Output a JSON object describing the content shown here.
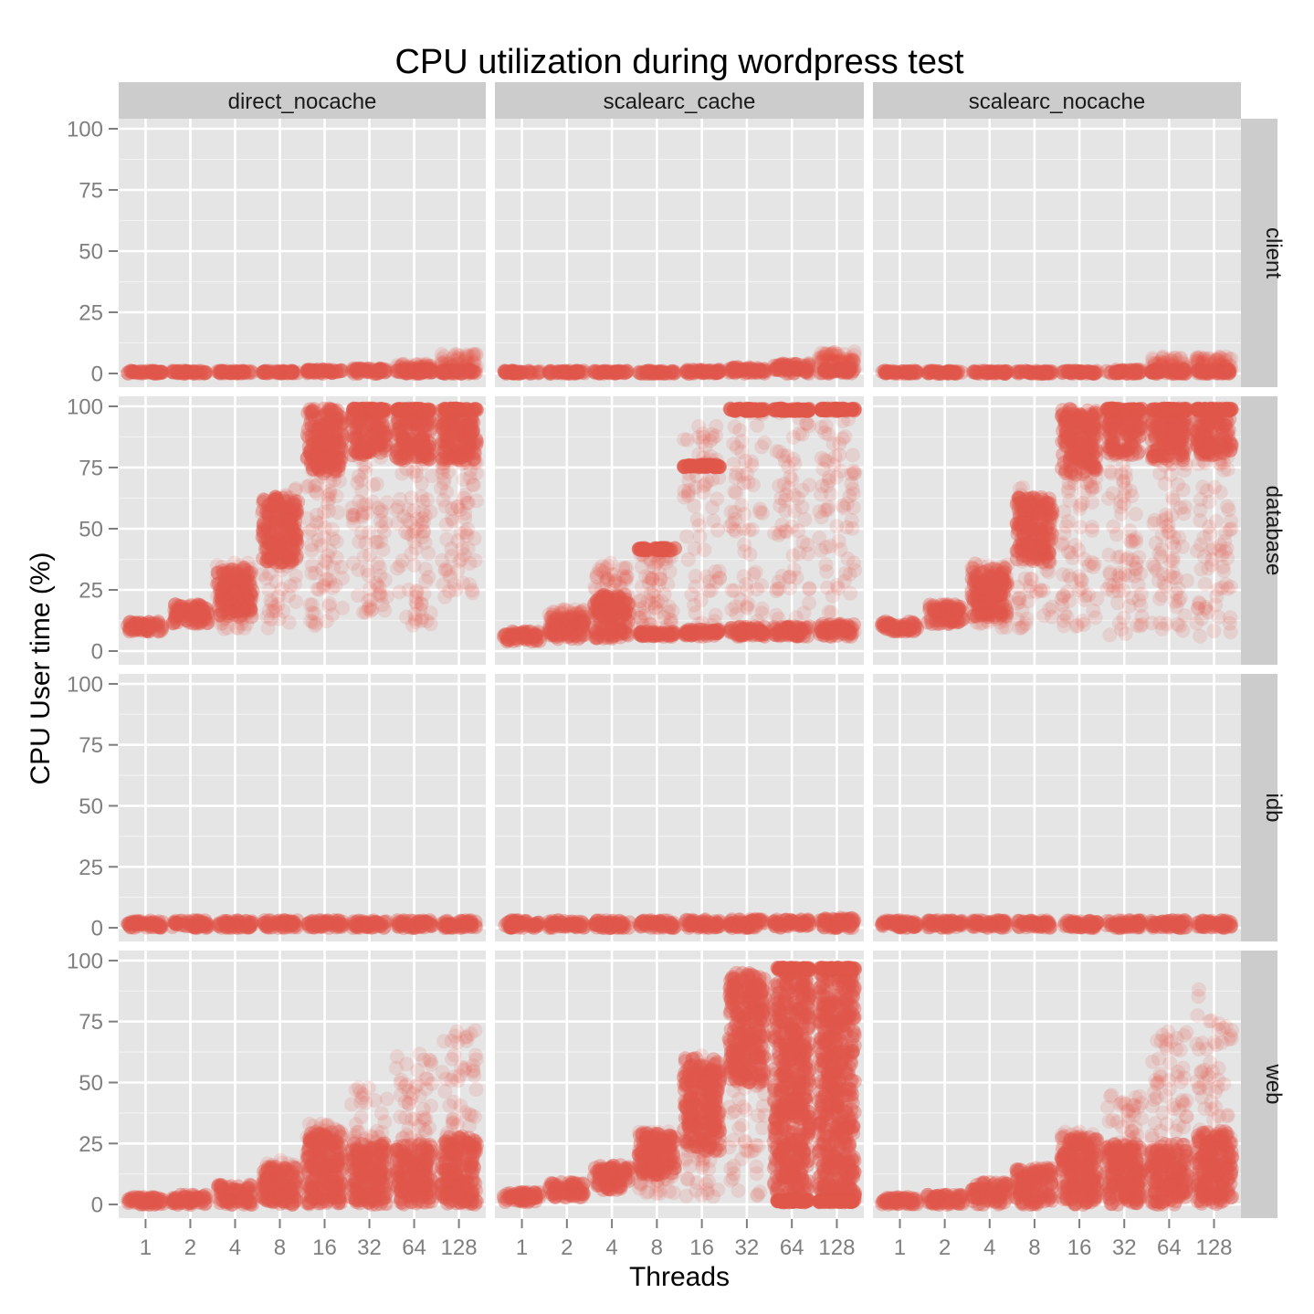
{
  "chart_data": {
    "type": "scatter",
    "subtype": "faceted jittered strip plot",
    "title": "CPU utilization during wordpress test",
    "xlabel": "Threads",
    "ylabel": "CPU User time (%)",
    "categories": [
      "1",
      "2",
      "4",
      "8",
      "16",
      "32",
      "64",
      "128"
    ],
    "ylim": [
      -5.6,
      104.1
    ],
    "yticks": [
      0,
      25,
      50,
      75,
      100
    ],
    "ytick_labels": [
      "0",
      "25",
      "50",
      "75",
      "100"
    ],
    "grid": true,
    "point_color": "#E0574A",
    "facet_cols": [
      "direct_nocache",
      "scalearc_cache",
      "scalearc_nocache"
    ],
    "facet_rows": [
      "client",
      "database",
      "idb",
      "web"
    ],
    "note": "each group: dense core range [lo,hi] of values, optional sparse range and cap level",
    "panels": {
      "client": {
        "direct_nocache": [
          {
            "core": [
              0,
              1
            ]
          },
          {
            "core": [
              0,
              1
            ]
          },
          {
            "core": [
              0,
              1
            ]
          },
          {
            "core": [
              0,
              1
            ]
          },
          {
            "core": [
              0,
              1.5
            ]
          },
          {
            "core": [
              0,
              2
            ]
          },
          {
            "core": [
              0,
              2
            ],
            "sparse": [
              0,
              4
            ]
          },
          {
            "core": [
              0,
              1.5
            ],
            "sparse": [
              0,
              8
            ]
          }
        ],
        "scalearc_cache": [
          {
            "core": [
              0,
              1
            ]
          },
          {
            "core": [
              0,
              1
            ]
          },
          {
            "core": [
              0,
              1
            ]
          },
          {
            "core": [
              0,
              1
            ]
          },
          {
            "core": [
              0,
              1.5
            ]
          },
          {
            "core": [
              0,
              2.5
            ]
          },
          {
            "core": [
              0,
              4
            ]
          },
          {
            "core": [
              0,
              2
            ],
            "sparse": [
              4,
              9
            ]
          }
        ],
        "scalearc_nocache": [
          {
            "core": [
              0,
              1
            ]
          },
          {
            "core": [
              0,
              1
            ]
          },
          {
            "core": [
              0,
              1
            ]
          },
          {
            "core": [
              0,
              1
            ]
          },
          {
            "core": [
              0,
              1
            ]
          },
          {
            "core": [
              0,
              1.5
            ]
          },
          {
            "core": [
              0,
              1.5
            ],
            "sparse": [
              0,
              7
            ]
          },
          {
            "core": [
              0,
              1.5
            ],
            "sparse": [
              0,
              7
            ]
          }
        ]
      },
      "database": {
        "direct_nocache": [
          {
            "core": [
              8,
              12
            ]
          },
          {
            "core": [
              11,
              19
            ]
          },
          {
            "core": [
              14,
              34
            ],
            "sparse": [
              9,
              36
            ]
          },
          {
            "core": [
              36,
              63
            ],
            "sparse": [
              9,
              67
            ]
          },
          {
            "core": [
              72,
              99
            ],
            "sparse": [
              10,
              75
            ]
          },
          {
            "core": [
              80,
              98
            ],
            "cap": 99,
            "sparse": [
              13,
              80
            ]
          },
          {
            "core": [
              78,
              98
            ],
            "cap": 99,
            "sparse": [
              9,
              80
            ]
          },
          {
            "core": [
              78,
              96
            ],
            "cap": 99,
            "sparse": [
              18,
              80
            ]
          }
        ],
        "scalearc_cache": [
          {
            "core": [
              4,
              8
            ]
          },
          {
            "core": [
              5,
              14
            ],
            "sparse": [
              10,
              17
            ]
          },
          {
            "core": [
              5,
              23
            ],
            "sparse": [
              15,
              36
            ]
          },
          {
            "core": [
              6,
              8
            ],
            "cap": 42,
            "sparse": [
              6,
              42
            ]
          },
          {
            "core": [
              6,
              9
            ],
            "cap": 76,
            "sparse": [
              6,
              92
            ]
          },
          {
            "core": [
              6,
              10
            ],
            "cap": 99,
            "sparse": [
              6,
              99
            ]
          },
          {
            "core": [
              6,
              10
            ],
            "cap": 99,
            "sparse": [
              6,
              99
            ]
          },
          {
            "core": [
              6,
              11
            ],
            "cap": 99,
            "sparse": [
              6,
              99
            ]
          }
        ],
        "scalearc_nocache": [
          {
            "core": [
              8,
              12
            ]
          },
          {
            "core": [
              11,
              19
            ]
          },
          {
            "core": [
              14,
              34
            ],
            "sparse": [
              9,
              36
            ]
          },
          {
            "core": [
              36,
              63
            ],
            "sparse": [
              9,
              67
            ]
          },
          {
            "core": [
              72,
              99
            ],
            "sparse": [
              10,
              75
            ]
          },
          {
            "core": [
              80,
              98
            ],
            "cap": 99,
            "sparse": [
              4,
              80
            ]
          },
          {
            "core": [
              78,
              98
            ],
            "cap": 99,
            "sparse": [
              8,
              80
            ]
          },
          {
            "core": [
              80,
              96
            ],
            "cap": 99,
            "sparse": [
              6,
              80
            ]
          }
        ]
      },
      "idb": {
        "direct_nocache": [
          {
            "core": [
              0,
              3
            ]
          },
          {
            "core": [
              0,
              3
            ]
          },
          {
            "core": [
              0,
              3
            ]
          },
          {
            "core": [
              0,
              3
            ]
          },
          {
            "core": [
              0,
              3
            ]
          },
          {
            "core": [
              0,
              3
            ]
          },
          {
            "core": [
              0,
              3
            ]
          },
          {
            "core": [
              0,
              3
            ]
          }
        ],
        "scalearc_cache": [
          {
            "core": [
              0,
              3
            ]
          },
          {
            "core": [
              0,
              3
            ]
          },
          {
            "core": [
              0,
              3
            ]
          },
          {
            "core": [
              0,
              3
            ]
          },
          {
            "core": [
              0,
              3.5
            ]
          },
          {
            "core": [
              0,
              3.5
            ]
          },
          {
            "core": [
              0,
              3.5
            ]
          },
          {
            "core": [
              0,
              4
            ]
          }
        ],
        "scalearc_nocache": [
          {
            "core": [
              0,
              3
            ]
          },
          {
            "core": [
              0,
              3
            ]
          },
          {
            "core": [
              0,
              3
            ]
          },
          {
            "core": [
              0,
              3
            ]
          },
          {
            "core": [
              0,
              3
            ]
          },
          {
            "core": [
              0,
              3
            ]
          },
          {
            "core": [
              0,
              3
            ]
          },
          {
            "core": [
              0,
              3
            ]
          }
        ]
      },
      "web": {
        "direct_nocache": [
          {
            "core": [
              0,
              3
            ]
          },
          {
            "core": [
              0,
              4
            ]
          },
          {
            "core": [
              0,
              8
            ]
          },
          {
            "core": [
              0,
              16
            ],
            "sparse": [
              0,
              19
            ]
          },
          {
            "core": [
              0,
              30
            ],
            "sparse": [
              0,
              33
            ]
          },
          {
            "core": [
              0,
              25
            ],
            "sparse": [
              0,
              48
            ]
          },
          {
            "core": [
              0,
              25
            ],
            "sparse": [
              0,
              62
            ]
          },
          {
            "core": [
              0,
              28
            ],
            "sparse": [
              0,
              72
            ]
          }
        ],
        "scalearc_cache": [
          {
            "core": [
              1,
              5
            ]
          },
          {
            "core": [
              3,
              9
            ]
          },
          {
            "core": [
              6,
              16
            ]
          },
          {
            "core": [
              12,
              30
            ],
            "sparse": [
              4,
              31
            ]
          },
          {
            "core": [
              22,
              60
            ],
            "sparse": [
              2,
              61
            ]
          },
          {
            "core": [
              50,
              95
            ],
            "sparse": [
              2,
              96
            ]
          },
          {
            "core": [
              2,
              96
            ],
            "cap": 97,
            "base": 1
          },
          {
            "core": [
              2,
              96
            ],
            "cap": 97,
            "base": 1
          }
        ],
        "scalearc_nocache": [
          {
            "core": [
              0,
              3
            ]
          },
          {
            "core": [
              0,
              4
            ]
          },
          {
            "core": [
              0,
              9
            ]
          },
          {
            "core": [
              0,
              15
            ]
          },
          {
            "core": [
              0,
              28
            ],
            "sparse": [
              0,
              30
            ]
          },
          {
            "core": [
              0,
              25
            ],
            "sparse": [
              0,
              45
            ]
          },
          {
            "core": [
              0,
              25
            ],
            "sparse": [
              0,
              72
            ]
          },
          {
            "core": [
              0,
              30
            ],
            "sparse": [
              0,
              92
            ]
          }
        ]
      }
    }
  }
}
